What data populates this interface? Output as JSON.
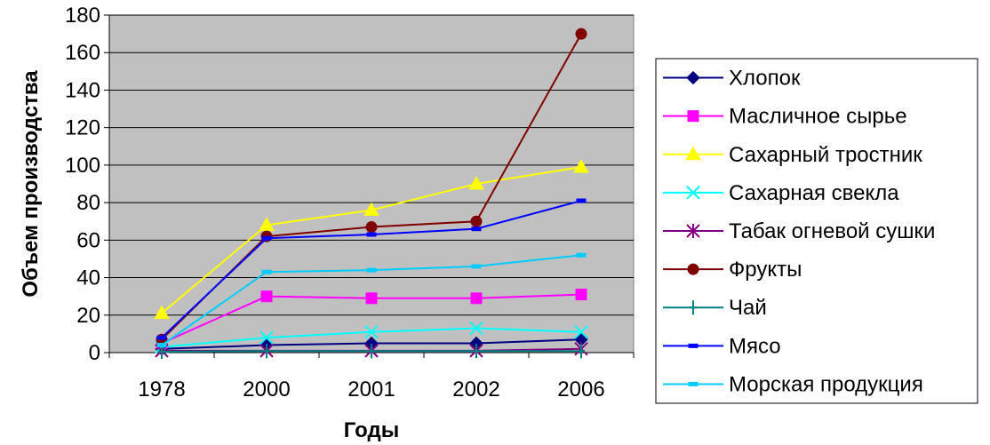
{
  "chart_data": {
    "type": "line",
    "title": "",
    "xlabel": "Годы",
    "ylabel": "Объем производства",
    "ylim": [
      0,
      180
    ],
    "y_ticks": [
      0,
      20,
      40,
      60,
      80,
      100,
      120,
      140,
      160,
      180
    ],
    "grid": true,
    "plot_background": "#c0c0c0",
    "legend_position": "right",
    "categories": [
      "1978",
      "2000",
      "2001",
      "2002",
      "2006"
    ],
    "series": [
      {
        "name": "Хлопок",
        "color": "#000080",
        "marker": "diamond",
        "values": [
          2,
          4,
          5,
          5,
          7
        ]
      },
      {
        "name": "Масличное сырье",
        "color": "#ff00ff",
        "marker": "square",
        "values": [
          5,
          30,
          29,
          29,
          31
        ]
      },
      {
        "name": "Сахарный тростник",
        "color": "#ffff00",
        "marker": "triangle",
        "values": [
          21,
          68,
          76,
          90,
          99
        ]
      },
      {
        "name": "Сахарная свекла",
        "color": "#00ffff",
        "marker": "x",
        "values": [
          3,
          8,
          11,
          13,
          11
        ]
      },
      {
        "name": "Табак огневой сушки",
        "color": "#800080",
        "marker": "star",
        "values": [
          1,
          1,
          1,
          1,
          2
        ]
      },
      {
        "name": "Фрукты",
        "color": "#800000",
        "marker": "circle",
        "values": [
          7,
          62,
          67,
          70,
          170
        ]
      },
      {
        "name": "Чай",
        "color": "#008080",
        "marker": "plus",
        "values": [
          0.5,
          0.8,
          0.8,
          0.8,
          0.8
        ]
      },
      {
        "name": "Мясо",
        "color": "#0000ff",
        "marker": "dash",
        "values": [
          8,
          61,
          63,
          66,
          81
        ]
      },
      {
        "name": "Морская продукция",
        "color": "#00ccff",
        "marker": "dash",
        "values": [
          4,
          43,
          44,
          46,
          52
        ]
      }
    ]
  }
}
